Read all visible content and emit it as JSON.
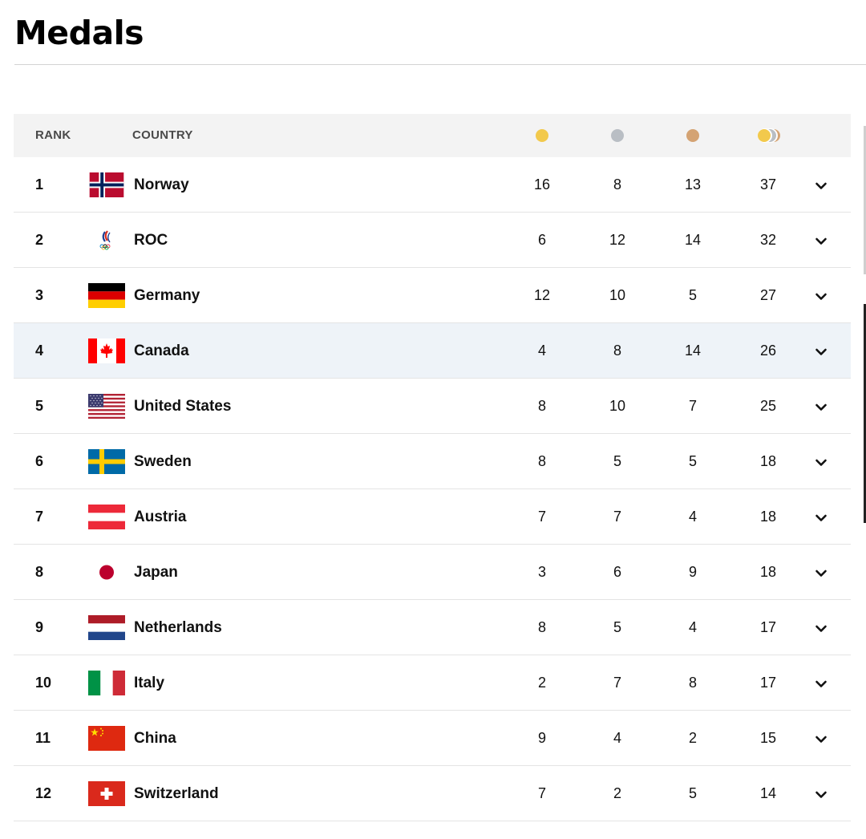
{
  "page": {
    "title": "Medals"
  },
  "table": {
    "headers": {
      "rank": "RANK",
      "country": "COUNTRY"
    },
    "medal_columns": [
      {
        "key": "gold",
        "icon": "gold-medal-icon",
        "color": "#f2c94c"
      },
      {
        "key": "silver",
        "icon": "silver-medal-icon",
        "color": "#b9bec4"
      },
      {
        "key": "bronze",
        "icon": "bronze-medal-icon",
        "color": "#d4a373"
      },
      {
        "key": "total",
        "icon": "total-medals-icon"
      }
    ],
    "highlight_color": "#eef3f8",
    "rows": [
      {
        "rank": "1",
        "country": "Norway",
        "flag": "norway",
        "gold": "16",
        "silver": "8",
        "bronze": "13",
        "total": "37"
      },
      {
        "rank": "2",
        "country": "ROC",
        "flag": "roc",
        "gold": "6",
        "silver": "12",
        "bronze": "14",
        "total": "32"
      },
      {
        "rank": "3",
        "country": "Germany",
        "flag": "germany",
        "gold": "12",
        "silver": "10",
        "bronze": "5",
        "total": "27"
      },
      {
        "rank": "4",
        "country": "Canada",
        "flag": "canada",
        "gold": "4",
        "silver": "8",
        "bronze": "14",
        "total": "26",
        "highlighted": true
      },
      {
        "rank": "5",
        "country": "United States",
        "flag": "united-states",
        "gold": "8",
        "silver": "10",
        "bronze": "7",
        "total": "25"
      },
      {
        "rank": "6",
        "country": "Sweden",
        "flag": "sweden",
        "gold": "8",
        "silver": "5",
        "bronze": "5",
        "total": "18"
      },
      {
        "rank": "7",
        "country": "Austria",
        "flag": "austria",
        "gold": "7",
        "silver": "7",
        "bronze": "4",
        "total": "18"
      },
      {
        "rank": "8",
        "country": "Japan",
        "flag": "japan",
        "gold": "3",
        "silver": "6",
        "bronze": "9",
        "total": "18"
      },
      {
        "rank": "9",
        "country": "Netherlands",
        "flag": "netherlands",
        "gold": "8",
        "silver": "5",
        "bronze": "4",
        "total": "17"
      },
      {
        "rank": "10",
        "country": "Italy",
        "flag": "italy",
        "gold": "2",
        "silver": "7",
        "bronze": "8",
        "total": "17"
      },
      {
        "rank": "11",
        "country": "China",
        "flag": "china",
        "gold": "9",
        "silver": "4",
        "bronze": "2",
        "total": "15"
      },
      {
        "rank": "12",
        "country": "Switzerland",
        "flag": "switzerland",
        "gold": "7",
        "silver": "2",
        "bronze": "5",
        "total": "14"
      }
    ]
  }
}
